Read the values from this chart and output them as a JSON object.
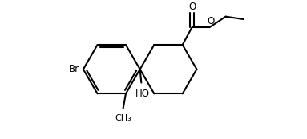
{
  "bg_color": "#ffffff",
  "line_color": "#000000",
  "line_width": 1.5,
  "font_size": 8.5,
  "fig_width": 3.83,
  "fig_height": 1.74,
  "dpi": 100,
  "xlim": [
    0,
    11
  ],
  "ylim": [
    0,
    5
  ]
}
